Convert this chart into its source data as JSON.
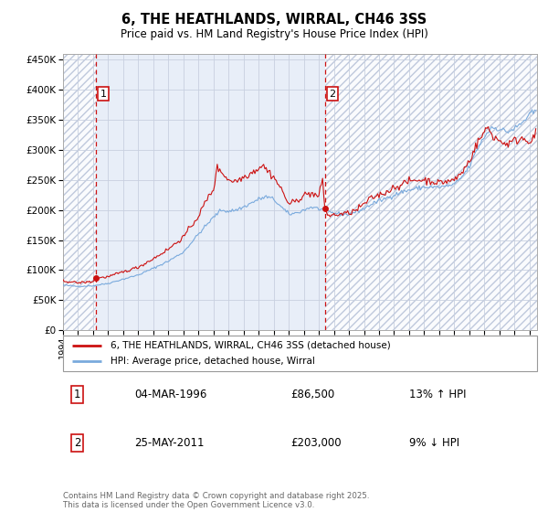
{
  "title": "6, THE HEATHLANDS, WIRRAL, CH46 3SS",
  "subtitle": "Price paid vs. HM Land Registry's House Price Index (HPI)",
  "ylim": [
    0,
    460000
  ],
  "yticks": [
    0,
    50000,
    100000,
    150000,
    200000,
    250000,
    300000,
    350000,
    400000,
    450000
  ],
  "xlim_start": 1994.0,
  "xlim_end": 2025.5,
  "sale1_year": 1996.17,
  "sale1_price": 86500,
  "sale1_label": "1",
  "sale2_year": 2011.39,
  "sale2_price": 203000,
  "sale2_label": "2",
  "legend_property": "6, THE HEATHLANDS, WIRRAL, CH46 3SS (detached house)",
  "legend_hpi": "HPI: Average price, detached house, Wirral",
  "table_row1": [
    "1",
    "04-MAR-1996",
    "£86,500",
    "13% ↑ HPI"
  ],
  "table_row2": [
    "2",
    "25-MAY-2011",
    "£203,000",
    "9% ↓ HPI"
  ],
  "footer": "Contains HM Land Registry data © Crown copyright and database right 2025.\nThis data is licensed under the Open Government Licence v3.0.",
  "bg_color": "#e8eef8",
  "hatch_color": "#b0bcd4",
  "grid_color": "#c8d0e0",
  "property_line_color": "#cc1111",
  "hpi_line_color": "#7aaadd",
  "dashed_line_color": "#cc1111",
  "sale_marker_color": "#cc1111"
}
